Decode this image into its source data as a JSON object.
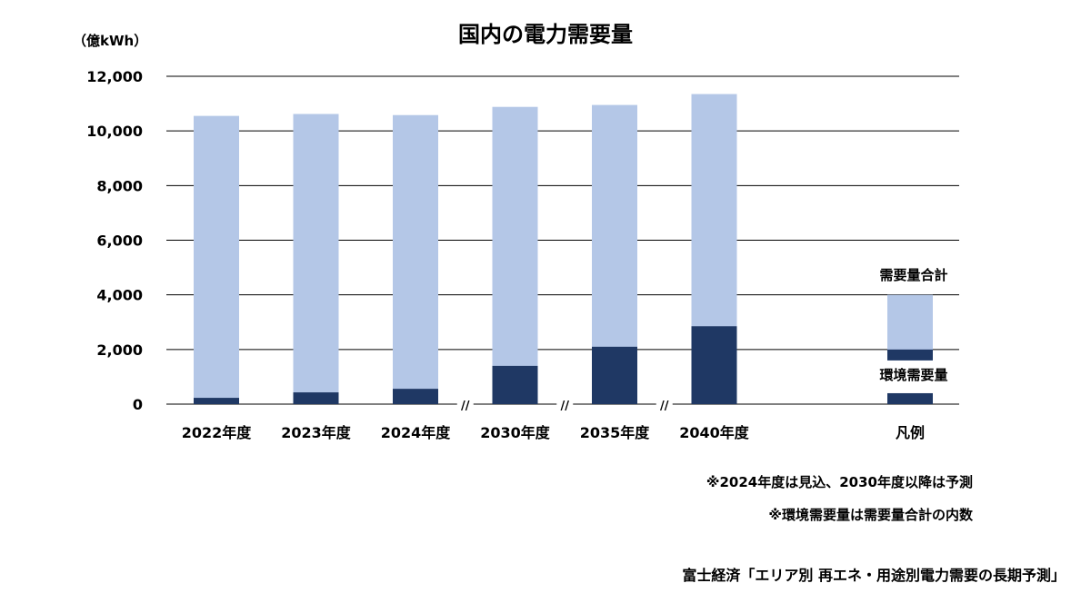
{
  "title": "国内の電力需要量",
  "unit_label": "（億kWh）",
  "notes": [
    "※2024年度は見込、2030年度以降は予測",
    "※環境需要量は需要量合計の内数"
  ],
  "source": "富士経済「エリア別 再エネ・用途別電力需要の長期予測」",
  "colors": {
    "total": "#b4c7e7",
    "env": "#1f3864",
    "grid": "#000000"
  },
  "break_mark": "//",
  "chart_data": {
    "type": "bar",
    "title": "国内の電力需要量",
    "ylabel": "（億kWh）",
    "ylim": [
      0,
      12000
    ],
    "yticks": [
      0,
      2000,
      4000,
      6000,
      8000,
      10000,
      12000
    ],
    "ytick_labels": [
      "0",
      "2,000",
      "4,000",
      "6,000",
      "8,000",
      "10,000",
      "12,000"
    ],
    "categories": [
      "2022年度",
      "2023年度",
      "2024年度",
      "2030年度",
      "2035年度",
      "2040年度"
    ],
    "series": [
      {
        "name": "需要量合計",
        "values": [
          10550,
          10620,
          10580,
          10880,
          10950,
          11350
        ]
      },
      {
        "name": "環境需要量",
        "values": [
          230,
          430,
          560,
          1400,
          2100,
          2850
        ]
      }
    ],
    "axis_breaks_after": [
      2,
      3,
      4
    ],
    "legend": {
      "title": "凡例",
      "total_label": "需要量合計",
      "env_label": "環境需要量"
    },
    "grid": true
  }
}
